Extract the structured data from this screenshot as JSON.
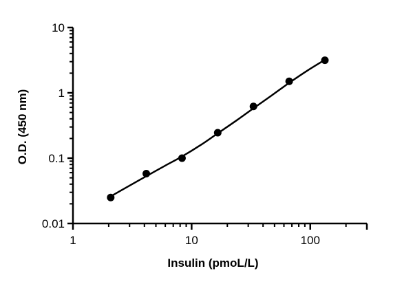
{
  "chart_data": {
    "type": "scatter",
    "title": "",
    "xlabel": "Insulin (pmoL/L)",
    "ylabel": "O.D. (450 nm)",
    "x_scale": "log",
    "y_scale": "log",
    "xlim": [
      1,
      300
    ],
    "ylim": [
      0.01,
      10
    ],
    "x_ticks": [
      {
        "value": 1,
        "label": "1"
      },
      {
        "value": 10,
        "label": "10"
      },
      {
        "value": 100,
        "label": "100"
      }
    ],
    "y_ticks": [
      {
        "value": 0.01,
        "label": "0.01"
      },
      {
        "value": 0.1,
        "label": "0.1"
      },
      {
        "value": 1,
        "label": "1"
      },
      {
        "value": 10,
        "label": "10"
      }
    ],
    "series": [
      {
        "points": [
          {
            "x": 2.08,
            "y": 0.025
          },
          {
            "x": 4.15,
            "y": 0.058
          },
          {
            "x": 8.3,
            "y": 0.1
          },
          {
            "x": 16.6,
            "y": 0.245
          },
          {
            "x": 33.2,
            "y": 0.62
          },
          {
            "x": 66.4,
            "y": 1.5
          },
          {
            "x": 132.8,
            "y": 3.15
          }
        ]
      }
    ],
    "fit_curve": {
      "x": [
        2.08,
        3,
        4.15,
        6,
        8.3,
        12,
        16.6,
        24,
        33.2,
        48,
        66.4,
        95,
        132.8
      ],
      "y": [
        0.026,
        0.038,
        0.053,
        0.077,
        0.106,
        0.16,
        0.24,
        0.38,
        0.58,
        0.93,
        1.42,
        2.2,
        3.2
      ]
    },
    "grid": false,
    "legend": "none",
    "colors": {
      "marker": "#000000",
      "line": "#000000",
      "axis": "#000000"
    }
  }
}
